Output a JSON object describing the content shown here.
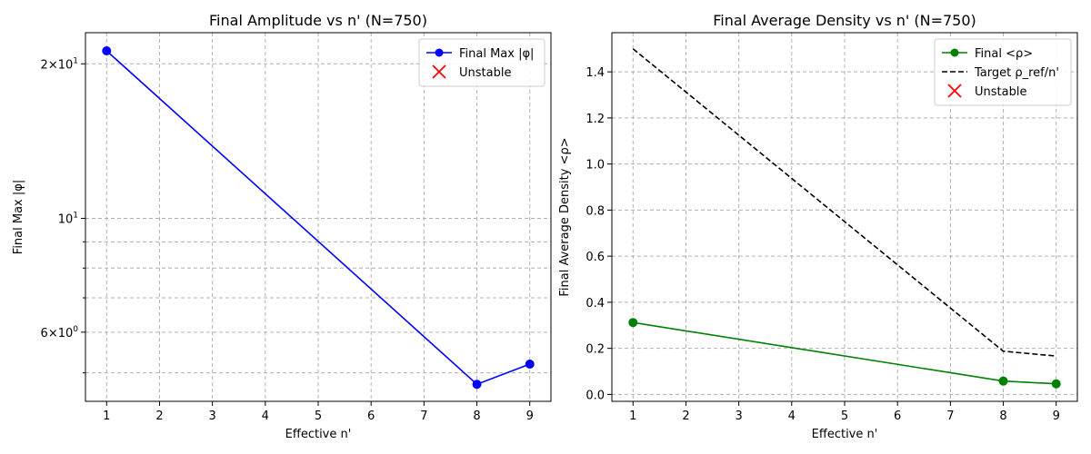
{
  "chart_data": [
    {
      "type": "line",
      "title": "Final Amplitude vs n' (N=750)",
      "xlabel": "Effective n'",
      "ylabel": "Final Max |φ|",
      "yscale": "log",
      "xlim": [
        0.6,
        9.4
      ],
      "ylim": [
        4.4,
        23.0
      ],
      "xticks": [
        1,
        2,
        3,
        4,
        5,
        6,
        7,
        8,
        9
      ],
      "yticks_major": [
        {
          "value": 6,
          "base": "6",
          "mult": "×",
          "ten": "10",
          "exp": "0"
        },
        {
          "value": 10,
          "base": "",
          "mult": "",
          "ten": "10",
          "exp": "1"
        },
        {
          "value": 20,
          "base": "2",
          "mult": "×",
          "ten": "10",
          "exp": "1"
        }
      ],
      "yticks_minor": [
        5,
        7,
        8,
        9
      ],
      "grid": true,
      "legend_position": "upper right",
      "series": [
        {
          "name": "Final Max |φ|",
          "kind": "line-marker",
          "color": "#0000ff",
          "x": [
            1,
            8,
            9
          ],
          "y": [
            21.2,
            4.75,
            5.2
          ]
        }
      ],
      "legend": [
        {
          "label": "Final Max |φ|",
          "kind": "line-marker",
          "color": "#0000ff"
        },
        {
          "label": "Unstable",
          "kind": "x-marker",
          "color": "#ff0000"
        }
      ]
    },
    {
      "type": "line",
      "title": "Final Average Density vs n' (N=750)",
      "xlabel": "Effective n'",
      "ylabel": "Final Average Density <ρ>",
      "yscale": "linear",
      "xlim": [
        0.6,
        9.4
      ],
      "ylim": [
        -0.03,
        1.57
      ],
      "xticks": [
        1,
        2,
        3,
        4,
        5,
        6,
        7,
        8,
        9
      ],
      "yticks": [
        "0.0",
        "0.2",
        "0.4",
        "0.6",
        "0.8",
        "1.0",
        "1.2",
        "1.4"
      ],
      "grid": true,
      "legend_position": "upper right",
      "series": [
        {
          "name": "Final <ρ>",
          "kind": "line-marker",
          "color": "#008000",
          "x": [
            1,
            8,
            9
          ],
          "y": [
            0.312,
            0.058,
            0.046
          ]
        },
        {
          "name": "Target ρ_ref/n'",
          "kind": "dashed",
          "color": "#000000",
          "x": [
            1,
            8,
            9
          ],
          "y": [
            1.5,
            0.1875,
            0.1667
          ]
        }
      ],
      "legend": [
        {
          "label": "Final <ρ>",
          "kind": "line-marker",
          "color": "#008000"
        },
        {
          "label": "Target ρ_ref/n'",
          "kind": "dashed",
          "color": "#000000"
        },
        {
          "label": "Unstable",
          "kind": "x-marker",
          "color": "#ff0000"
        }
      ]
    }
  ]
}
